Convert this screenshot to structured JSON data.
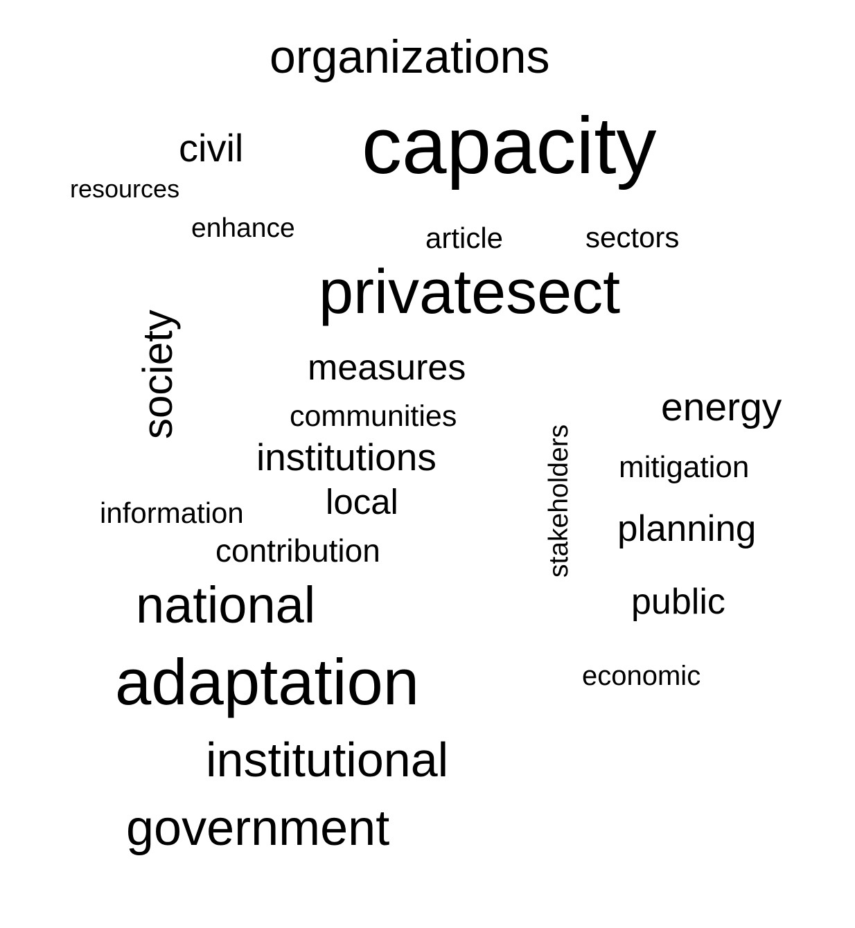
{
  "word_cloud": {
    "text_color": "#000000",
    "background_color": "#ffffff",
    "words": {
      "organizations": "organizations",
      "capacity": "capacity",
      "civil": "civil",
      "resources": "resources",
      "enhance": "enhance",
      "article": "article",
      "sectors": "sectors",
      "privatesect": "privatesect",
      "society": "society",
      "measures": "measures",
      "communities": "communities",
      "institutions": "institutions",
      "energy": "energy",
      "stakeholders": "stakeholders",
      "mitigation": "mitigation",
      "information": "information",
      "local": "local",
      "planning": "planning",
      "contribution": "contribution",
      "national": "national",
      "public": "public",
      "adaptation": "adaptation",
      "economic": "economic",
      "institutional": "institutional",
      "government": "government"
    }
  }
}
